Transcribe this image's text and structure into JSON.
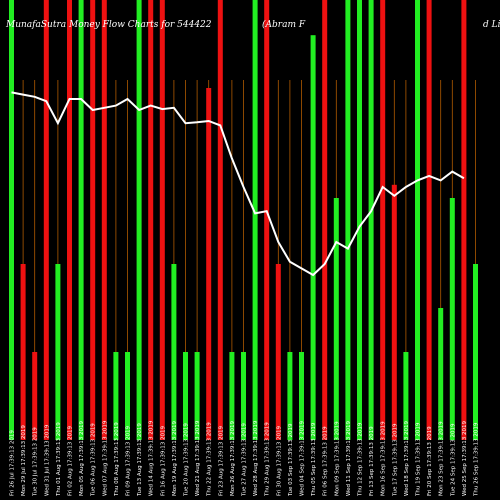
{
  "chart_data": {
    "type": "bar",
    "title_left": "MunafaSutra Money Flow  Charts for 544422",
    "title_right": "(Abram F",
    "title_far_right": "d Li",
    "categories": [
      "Fri 26 Jul 17:39:13 2019",
      "Mon 29 Jul 17:39:13 2019",
      "Tue 30 Jul 17:39:13 2019",
      "Wed 31 Jul 17:39:13 2019",
      "Thu 01 Aug 17:39:13 2019",
      "Fri 02 Aug 17:39:13 2019",
      "Mon 05 Aug 17:39:13 2019",
      "Tue 06 Aug 17:39:13 2019",
      "Wed 07 Aug 17:39:13 2019",
      "Thu 08 Aug 17:39:13 2019",
      "Fri 09 Aug 17:39:13 2019",
      "Tue 13 Aug 17:39:13 2019",
      "Wed 14 Aug 17:39:13 2019",
      "Fri 16 Aug 17:39:13 2019",
      "Mon 19 Aug 17:39:13 2019",
      "Tue 20 Aug 17:39:13 2019",
      "Wed 21 Aug 17:39:13 2019",
      "Thu 22 Aug 17:39:13 2019",
      "Fri 23 Aug 17:39:13 2019",
      "Mon 26 Aug 17:39:13 2019",
      "Tue 27 Aug 17:39:13 2019",
      "Wed 28 Aug 17:39:13 2019",
      "Thu 29 Aug 17:39:13 2019",
      "Fri 30 Aug 17:39:13 2019",
      "Tue 03 Sep 17:39:13 2019",
      "Wed 04 Sep 17:39:13 2019",
      "Thu 05 Sep 17:39:13 2019",
      "Fri 06 Sep 17:39:13 2019",
      "Mon 09 Sep 17:39:13 2019",
      "Wed 11 Sep 17:39:13 2019",
      "Thu 12 Sep 17:39:13 2019",
      "Fri 13 Sep 17:39:13 2019",
      "Mon 16 Sep 17:39:13 2019",
      "Tue 17 Sep 17:39:13 2019",
      "Wed 18 Sep 17:39:13 2019",
      "Thu 19 Sep 17:39:13 2019",
      "Fri 20 Sep 17:39:13 2019",
      "Mon 23 Sep 17:39:13 2019",
      "Tue 24 Sep 17:39:13 2019",
      "Wed 25 Sep 17:39:13 2019",
      "Thu 26 Sep 17:39:13 2019"
    ],
    "flows": [
      "up",
      "down",
      "down",
      "down",
      "up",
      "down",
      "up",
      "down",
      "down",
      "up",
      "up",
      "up",
      "down",
      "down",
      "up",
      "up",
      "up",
      "down",
      "down",
      "up",
      "up",
      "up",
      "down",
      "down",
      "up",
      "up",
      "up",
      "down",
      "up",
      "up",
      "up",
      "up",
      "down",
      "down",
      "up",
      "up",
      "down",
      "up",
      "up",
      "down",
      "up"
    ],
    "volumes": [
      100,
      40,
      20,
      100,
      40,
      100,
      100,
      100,
      100,
      20,
      20,
      100,
      100,
      100,
      40,
      20,
      20,
      80,
      100,
      20,
      20,
      100,
      100,
      40,
      20,
      20,
      92,
      100,
      55,
      100,
      100,
      100,
      100,
      58,
      20,
      100,
      100,
      30,
      55,
      100,
      40
    ],
    "price_line": [
      79,
      78.5,
      78,
      77,
      72,
      77.5,
      77.5,
      75,
      75.5,
      76,
      77.5,
      75,
      76,
      75.2,
      75.5,
      72,
      72.2,
      72.5,
      71.5,
      64,
      57.5,
      51.5,
      52,
      45,
      40.5,
      39,
      37.5,
      40,
      45,
      43.5,
      48.5,
      52,
      57.5,
      55.5,
      57.5,
      59,
      60,
      59,
      61,
      59.5,
      null
    ],
    "colors": {
      "up": "#22ee22",
      "down": "#ee1111",
      "line": "#ffffff",
      "grid": "#b05a00",
      "background": "#000000"
    }
  }
}
